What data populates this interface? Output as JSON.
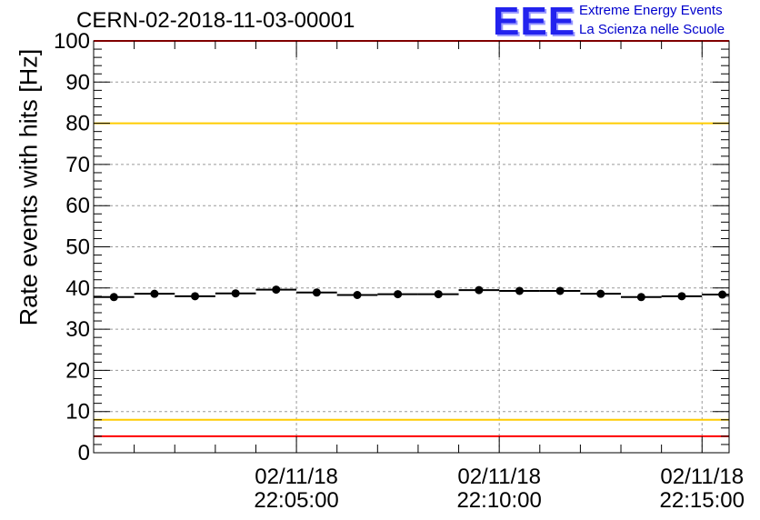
{
  "chart_data": {
    "type": "scatter",
    "title": "CERN-02-2018-11-03-00001",
    "ylabel": "Rate events with hits [Hz]",
    "xlabel": "",
    "ylim": [
      0,
      100
    ],
    "yticks": [
      0,
      10,
      20,
      30,
      40,
      50,
      60,
      70,
      80,
      90,
      100
    ],
    "x_range_seconds": [
      0,
      940
    ],
    "x_tick_labels": [
      {
        "t": 300,
        "date": "02/11/18",
        "time": "22:05:00"
      },
      {
        "t": 600,
        "date": "02/11/18",
        "time": "22:10:00"
      },
      {
        "t": 900,
        "date": "02/11/18",
        "time": "22:15:00"
      }
    ],
    "bin_width_seconds": 60,
    "series": [
      {
        "x": [
          30,
          90,
          150,
          210,
          270,
          330,
          390,
          450,
          510,
          570,
          630,
          690,
          750,
          810,
          870,
          930
        ],
        "y": [
          37.8,
          38.6,
          38.0,
          38.7,
          39.6,
          38.9,
          38.3,
          38.5,
          38.5,
          39.5,
          39.3,
          39.3,
          38.6,
          37.8,
          38.0,
          38.4
        ]
      }
    ],
    "reference_lines": [
      {
        "y": 100,
        "color": "#ff0000"
      },
      {
        "y": 80,
        "color": "#ffcc00"
      },
      {
        "y": 8,
        "color": "#ffcc00"
      },
      {
        "y": 4,
        "color": "#ff0000"
      }
    ],
    "grid": true
  },
  "logo": {
    "mark": "EEE",
    "line1": "Extreme Energy Events",
    "line2": "La Scienza nelle Scuole",
    "color": "#0000cc"
  }
}
